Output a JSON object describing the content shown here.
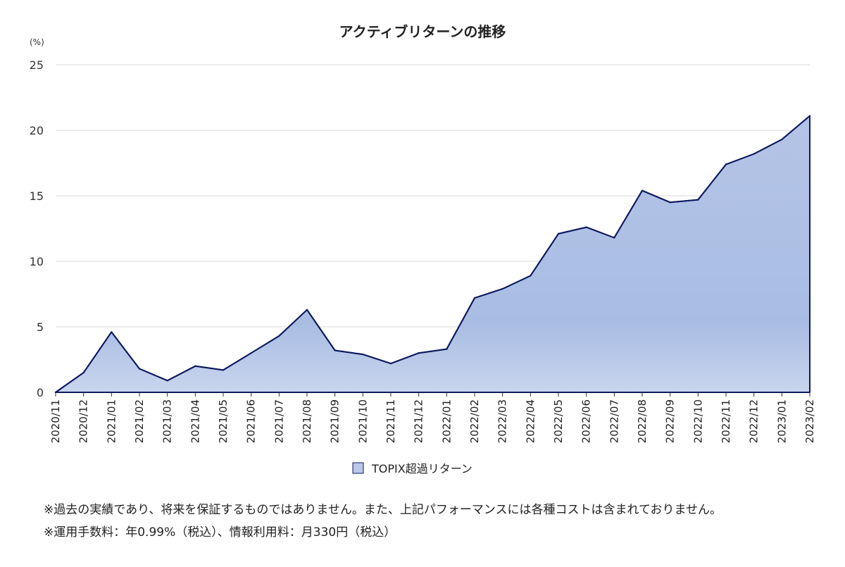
{
  "chart_data": {
    "type": "area",
    "title": "アクティブリターンの推移",
    "ylabel": "(%)",
    "xlabel": "",
    "ylim": [
      0,
      25
    ],
    "yticks": [
      0,
      5,
      10,
      15,
      20,
      25
    ],
    "grid": true,
    "legend_position": "bottom-center",
    "categories": [
      "2020/11",
      "2020/12",
      "2021/01",
      "2021/02",
      "2021/03",
      "2021/04",
      "2021/05",
      "2021/06",
      "2021/07",
      "2021/08",
      "2021/09",
      "2021/10",
      "2021/11",
      "2021/12",
      "2022/01",
      "2022/02",
      "2022/03",
      "2022/04",
      "2022/05",
      "2022/06",
      "2022/07",
      "2022/08",
      "2022/09",
      "2022/10",
      "2022/11",
      "2022/12",
      "2023/01",
      "2023/02"
    ],
    "series": [
      {
        "name": "TOPIX超過リターン",
        "values": [
          0.0,
          1.5,
          4.6,
          1.8,
          0.9,
          2.0,
          1.7,
          3.0,
          4.3,
          6.3,
          3.2,
          2.9,
          2.2,
          3.0,
          3.3,
          7.2,
          7.9,
          8.9,
          12.1,
          12.6,
          11.8,
          15.4,
          14.5,
          14.7,
          17.4,
          18.2,
          19.3,
          21.1
        ],
        "line_color": "#0d1a5e",
        "fill_color_top": "#b4c4e6",
        "fill_color_bottom": "#c9d5ee"
      }
    ]
  },
  "notes": [
    "※過去の実績であり、将来を保証するものではありません。また、上記パフォーマンスには各種コストは含まれておりません。",
    "※運用手数料：年0.99%（税込）、情報利用料：月330円（税込）"
  ]
}
